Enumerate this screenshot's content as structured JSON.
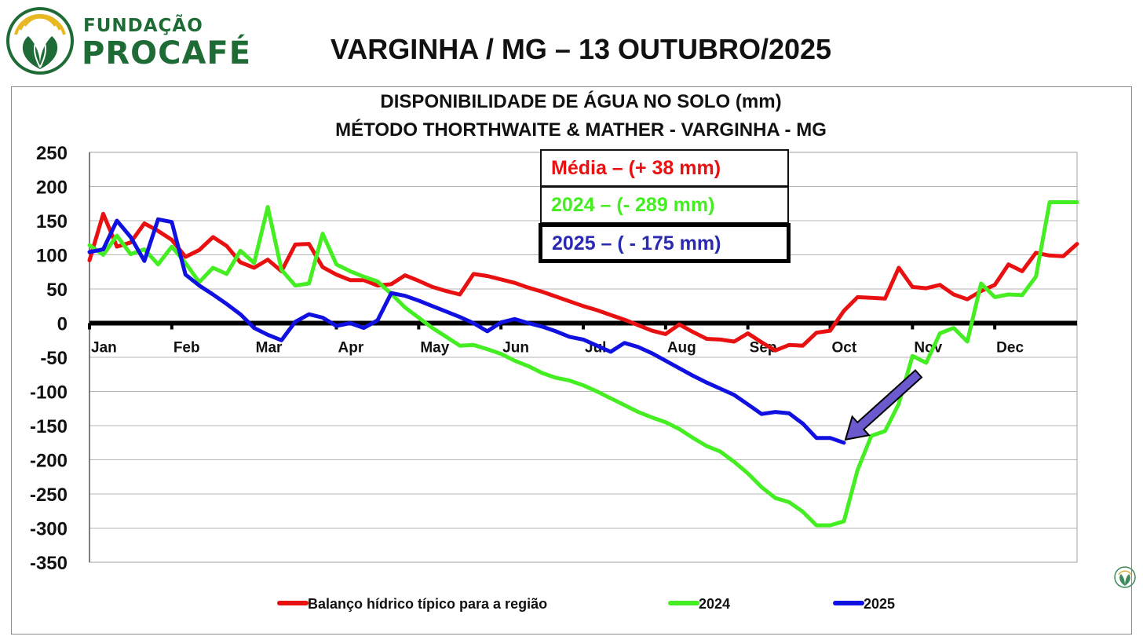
{
  "header": {
    "logo_text_top": "FUNDAÇÃO",
    "logo_text_main": "PROCAFÉ",
    "title": "VARGINHA / MG – 13 OUTUBRO/2025"
  },
  "annotations": {
    "media": "Média – (+ 38 mm)",
    "y2024": "2024 – (- 289 mm)",
    "y2025": "2025 – ( - 175 mm)"
  },
  "colors": {
    "media": "#e81010",
    "y2024": "#44ee22",
    "y2025": "#1010e0",
    "arrow": "#6a5acd",
    "logo_green": "#1f6b35",
    "logo_gold": "#e8b820"
  },
  "icons": [
    "logo-icon",
    "arrow-icon",
    "corner-logo-icon"
  ],
  "chart_data": {
    "type": "line",
    "title": "DISPONIBILIDADE DE ÁGUA NO SOLO (mm)",
    "subtitle": "MÉTODO THORTHWAITE & MATHER - VARGINHA - MG",
    "xlabel": "",
    "ylabel": "",
    "ylim": [
      -350,
      250
    ],
    "yticks": [
      250,
      200,
      150,
      100,
      50,
      0,
      -50,
      -100,
      -150,
      -200,
      -250,
      -300,
      -350
    ],
    "xlim": [
      0,
      72
    ],
    "months": [
      "Jan",
      "Feb",
      "Mar",
      "Apr",
      "May",
      "Jun",
      "Jul",
      "Aug",
      "Sep",
      "Oct",
      "Nov",
      "Dec"
    ],
    "grid": true,
    "legend_position": "bottom",
    "series": [
      {
        "name": "Balanço hídrico típico para a região",
        "x": [
          0,
          1,
          2,
          3,
          4,
          5,
          6,
          7,
          8,
          9,
          10,
          11,
          12,
          13,
          14,
          15,
          16,
          17,
          18,
          19,
          20,
          21,
          22,
          23,
          24,
          25,
          26,
          27,
          28,
          29,
          30,
          31,
          32,
          33,
          34,
          35,
          36,
          37,
          38,
          39,
          40,
          41,
          42,
          43,
          44,
          45,
          46,
          47,
          48,
          49,
          50,
          51,
          52,
          53,
          54,
          55,
          56,
          57,
          58,
          59,
          60,
          61,
          62,
          63,
          64,
          65,
          66,
          67,
          68,
          69,
          70,
          71,
          72
        ],
        "values": [
          92,
          160,
          112,
          118,
          146,
          135,
          122,
          97,
          107,
          126,
          113,
          89,
          81,
          93,
          76,
          115,
          116,
          82,
          71,
          63,
          63,
          55,
          57,
          70,
          62,
          53,
          47,
          42,
          72,
          69,
          64,
          59,
          52,
          46,
          39,
          32,
          25,
          19,
          12,
          5,
          -3,
          -11,
          -16,
          -2,
          -13,
          -23,
          -24,
          -27,
          -15,
          -28,
          -40,
          -32,
          -33,
          -14,
          -11,
          18,
          38,
          37,
          36,
          81,
          53,
          51,
          56,
          42,
          35,
          47,
          56,
          86,
          76,
          103,
          99,
          98,
          116
        ]
      },
      {
        "name": "2024",
        "x": [
          0,
          1,
          2,
          3,
          4,
          5,
          6,
          7,
          8,
          9,
          10,
          11,
          12,
          13,
          14,
          15,
          16,
          17,
          18,
          19,
          20,
          21,
          22,
          23,
          24,
          25,
          26,
          27,
          28,
          29,
          30,
          31,
          32,
          33,
          34,
          35,
          36,
          37,
          38,
          39,
          40,
          41,
          42,
          43,
          44,
          45,
          46,
          47,
          48,
          49,
          50,
          51,
          52,
          53,
          54,
          55,
          56,
          57,
          58,
          59,
          60,
          61,
          62,
          63,
          64,
          65,
          66,
          67,
          68,
          69,
          70,
          71,
          72
        ],
        "values": [
          114,
          100,
          128,
          101,
          108,
          86,
          112,
          88,
          60,
          81,
          72,
          106,
          88,
          170,
          78,
          55,
          58,
          131,
          86,
          76,
          68,
          61,
          43,
          23,
          8,
          -7,
          -20,
          -33,
          -32,
          -38,
          -45,
          -55,
          -63,
          -73,
          -80,
          -84,
          -91,
          -100,
          -110,
          -120,
          -130,
          -138,
          -145,
          -155,
          -168,
          -180,
          -188,
          -203,
          -220,
          -240,
          -256,
          -262,
          -276,
          -296,
          -296,
          -290,
          -215,
          -165,
          -158,
          -118,
          -48,
          -58,
          -15,
          -7,
          -27,
          58,
          38,
          42,
          41,
          68,
          177,
          177,
          177
        ]
      },
      {
        "name": "2025",
        "x": [
          0,
          1,
          2,
          3,
          4,
          5,
          6,
          7,
          8,
          9,
          10,
          11,
          12,
          13,
          14,
          15,
          16,
          17,
          18,
          19,
          20,
          21,
          22,
          23,
          24,
          25,
          26,
          27,
          28,
          29,
          30,
          31,
          32,
          33,
          34,
          35,
          36,
          37,
          38,
          39,
          40,
          41,
          42,
          43,
          44,
          45,
          46,
          47,
          48,
          49,
          50,
          51,
          52,
          53,
          54,
          55
        ],
        "values": [
          104,
          108,
          150,
          126,
          91,
          152,
          148,
          71,
          55,
          42,
          28,
          13,
          -7,
          -17,
          -25,
          2,
          13,
          8,
          -4,
          0,
          -7,
          4,
          44,
          40,
          33,
          25,
          17,
          9,
          0,
          -12,
          1,
          6,
          0,
          -5,
          -12,
          -20,
          -24,
          -33,
          -42,
          -29,
          -35,
          -44,
          -55,
          -66,
          -77,
          -87,
          -96,
          -105,
          -119,
          -133,
          -130,
          -132,
          -147,
          -168,
          -168,
          -175
        ]
      }
    ]
  }
}
